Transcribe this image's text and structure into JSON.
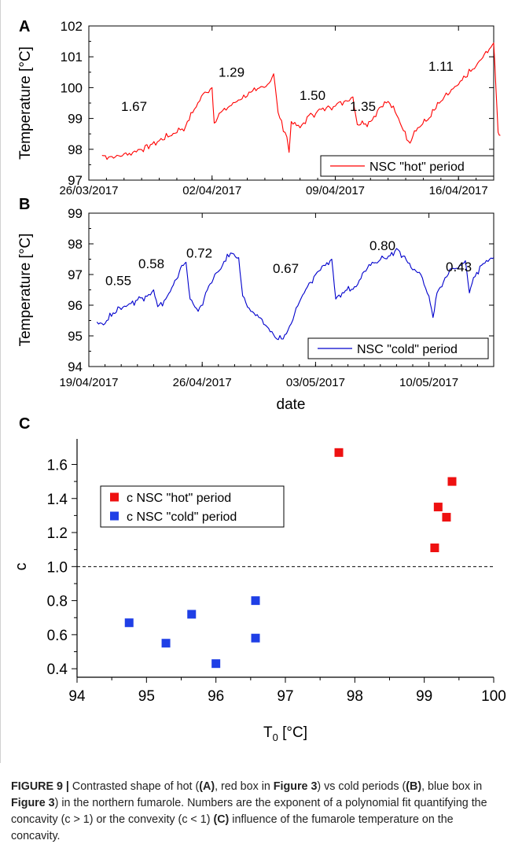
{
  "chart_data": [
    {
      "panel": "A",
      "type": "line",
      "ylabel": "Temperature [°C]",
      "xlabel": "",
      "x_ticks": [
        "26/03/2017",
        "02/04/2017",
        "09/04/2017",
        "16/04/2017"
      ],
      "y_ticks": [
        "97",
        "98",
        "99",
        "100",
        "101",
        "102"
      ],
      "xlim": [
        "2017-03-26",
        "2017-04-18"
      ],
      "ylim": [
        97,
        102
      ],
      "grid": false,
      "legend_position": "bottom-right",
      "series": [
        {
          "name": "NSC \"hot\" period",
          "color": "#ff0000",
          "points": [
            [
              "2017-03-26T18:00",
              97.8
            ],
            [
              "2017-03-27T12:00",
              97.75
            ],
            [
              "2017-03-28T12:00",
              97.9
            ],
            [
              "2017-03-29T12:00",
              98.15
            ],
            [
              "2017-03-30T12:00",
              98.4
            ],
            [
              "2017-03-31T12:00",
              98.75
            ],
            [
              "2017-04-01T00:00",
              99.3
            ],
            [
              "2017-04-01T12:00",
              99.8
            ],
            [
              "2017-04-02T00:00",
              100.0
            ],
            [
              "2017-04-02T03:00",
              98.85
            ],
            [
              "2017-04-02T12:00",
              99.2
            ],
            [
              "2017-04-03T12:00",
              99.6
            ],
            [
              "2017-04-04T12:00",
              99.9
            ],
            [
              "2017-04-05T06:00",
              100.15
            ],
            [
              "2017-04-05T12:00",
              100.45
            ],
            [
              "2017-04-05T18:00",
              99.2
            ],
            [
              "2017-04-06T06:00",
              98.4
            ],
            [
              "2017-04-06T09:00",
              97.9
            ],
            [
              "2017-04-06T12:00",
              98.9
            ],
            [
              "2017-04-07T00:00",
              98.7
            ],
            [
              "2017-04-07T12:00",
              99.1
            ],
            [
              "2017-04-08T12:00",
              99.35
            ],
            [
              "2017-04-09T12:00",
              99.55
            ],
            [
              "2017-04-10T00:00",
              99.7
            ],
            [
              "2017-04-10T06:00",
              98.8
            ],
            [
              "2017-04-11T00:00",
              98.9
            ],
            [
              "2017-04-11T12:00",
              99.35
            ],
            [
              "2017-04-12T00:00",
              99.55
            ],
            [
              "2017-04-12T12:00",
              99.1
            ],
            [
              "2017-04-13T06:00",
              98.2
            ],
            [
              "2017-04-13T12:00",
              98.6
            ],
            [
              "2017-04-14T06:00",
              98.95
            ],
            [
              "2017-04-15T00:00",
              99.55
            ],
            [
              "2017-04-16T00:00",
              100.1
            ],
            [
              "2017-04-17T00:00",
              100.7
            ],
            [
              "2017-04-17T18:00",
              101.25
            ],
            [
              "2017-04-18T00:00",
              101.45
            ],
            [
              "2017-04-18T03:00",
              100.0
            ],
            [
              "2017-04-18T06:00",
              98.55
            ],
            [
              "2017-04-18T09:00",
              98.45
            ]
          ]
        }
      ],
      "annotations": [
        "1.67",
        "1.29",
        "1.50",
        "1.35",
        "1.11"
      ]
    },
    {
      "panel": "B",
      "type": "line",
      "ylabel": "Temperature [°C]",
      "xlabel": "date",
      "x_ticks": [
        "19/04/2017",
        "26/04/2017",
        "03/05/2017",
        "10/05/2017"
      ],
      "y_ticks": [
        "94",
        "95",
        "96",
        "97",
        "98",
        "99"
      ],
      "xlim": [
        "2017-04-19",
        "2017-05-14"
      ],
      "ylim": [
        94,
        99
      ],
      "grid": false,
      "legend_position": "bottom-right",
      "series": [
        {
          "name": "NSC \"cold\" period",
          "color": "#0000cc",
          "points": [
            [
              "2017-04-19T12:00",
              95.45
            ],
            [
              "2017-04-20T00:00",
              95.4
            ],
            [
              "2017-04-20T12:00",
              95.75
            ],
            [
              "2017-04-21T12:00",
              96.05
            ],
            [
              "2017-04-22T12:00",
              96.3
            ],
            [
              "2017-04-23T00:00",
              96.5
            ],
            [
              "2017-04-23T06:00",
              95.95
            ],
            [
              "2017-04-23T18:00",
              96.2
            ],
            [
              "2017-04-24T12:00",
              96.9
            ],
            [
              "2017-04-24T18:00",
              97.3
            ],
            [
              "2017-04-25T00:00",
              97.4
            ],
            [
              "2017-04-25T06:00",
              96.2
            ],
            [
              "2017-04-25T18:00",
              95.8
            ],
            [
              "2017-04-26T12:00",
              96.7
            ],
            [
              "2017-04-27T06:00",
              97.3
            ],
            [
              "2017-04-27T18:00",
              97.7
            ],
            [
              "2017-04-28T06:00",
              97.55
            ],
            [
              "2017-04-28T12:00",
              96.3
            ],
            [
              "2017-04-29T00:00",
              95.8
            ],
            [
              "2017-04-29T12:00",
              95.6
            ],
            [
              "2017-04-30T00:00",
              95.3
            ],
            [
              "2017-04-30T12:00",
              94.95
            ],
            [
              "2017-05-01T00:00",
              94.9
            ],
            [
              "2017-05-01T12:00",
              95.4
            ],
            [
              "2017-05-02T00:00",
              96.1
            ],
            [
              "2017-05-02T12:00",
              96.6
            ],
            [
              "2017-05-03T00:00",
              97.0
            ],
            [
              "2017-05-03T12:00",
              97.3
            ],
            [
              "2017-05-04T00:00",
              97.5
            ],
            [
              "2017-05-04T06:00",
              96.2
            ],
            [
              "2017-05-04T18:00",
              96.4
            ],
            [
              "2017-05-05T12:00",
              96.6
            ],
            [
              "2017-05-06T00:00",
              97.1
            ],
            [
              "2017-05-06T12:00",
              97.4
            ],
            [
              "2017-05-07T12:00",
              97.6
            ],
            [
              "2017-05-08T00:00",
              97.85
            ],
            [
              "2017-05-08T12:00",
              97.6
            ],
            [
              "2017-05-09T00:00",
              97.15
            ],
            [
              "2017-05-09T12:00",
              97.0
            ],
            [
              "2017-05-10T00:00",
              96.3
            ],
            [
              "2017-05-10T06:00",
              95.6
            ],
            [
              "2017-05-10T12:00",
              96.4
            ],
            [
              "2017-05-11T00:00",
              96.9
            ],
            [
              "2017-05-11T12:00",
              97.2
            ],
            [
              "2017-05-12T00:00",
              97.3
            ],
            [
              "2017-05-12T06:00",
              97.45
            ],
            [
              "2017-05-12T12:00",
              96.4
            ],
            [
              "2017-05-12T18:00",
              96.9
            ],
            [
              "2017-05-13T06:00",
              97.3
            ],
            [
              "2017-05-13T18:00",
              97.5
            ],
            [
              "2017-05-14T00:00",
              97.55
            ]
          ]
        }
      ],
      "annotations": [
        "0.55",
        "0.58",
        "0.72",
        "0.67",
        "0.80",
        "0.43"
      ]
    },
    {
      "panel": "C",
      "type": "scatter",
      "xlabel": "T",
      "xlabel_sub": "0",
      "xlabel_unit": " [°C]",
      "ylabel": "c",
      "xlim": [
        94,
        100
      ],
      "ylim": [
        0.35,
        1.75
      ],
      "x_ticks": [
        "94",
        "95",
        "96",
        "97",
        "98",
        "99",
        "100"
      ],
      "y_ticks": [
        "0.4",
        "0.6",
        "0.8",
        "1.0",
        "1.2",
        "1.4",
        "1.6"
      ],
      "grid": false,
      "legend_position": "top-left",
      "reference_line": {
        "y": 1.0,
        "style": "dashed"
      },
      "series": [
        {
          "name": "c NSC \"hot\" period",
          "color": "#ee1111",
          "points": [
            [
              97.77,
              1.67
            ],
            [
              99.4,
              1.5
            ],
            [
              99.2,
              1.35
            ],
            [
              99.32,
              1.29
            ],
            [
              99.15,
              1.11
            ]
          ]
        },
        {
          "name": "c NSC \"cold\" period",
          "color": "#1f3fe6",
          "points": [
            [
              94.75,
              0.67
            ],
            [
              95.28,
              0.55
            ],
            [
              95.65,
              0.72
            ],
            [
              96.0,
              0.43
            ],
            [
              96.57,
              0.8
            ],
            [
              96.57,
              0.58
            ]
          ]
        }
      ]
    }
  ],
  "panel_labels": [
    "A",
    "B",
    "C"
  ],
  "caption": {
    "figure_label": "FIGURE 9 |",
    "runs": [
      {
        "text": " Contrasted shape of hot (",
        "bold": false
      },
      {
        "text": "(A)",
        "bold": true
      },
      {
        "text": ", red box in ",
        "bold": false
      },
      {
        "text": "Figure 3",
        "bold": true
      },
      {
        "text": ") vs cold periods (",
        "bold": false
      },
      {
        "text": "(B)",
        "bold": true
      },
      {
        "text": ", blue box in ",
        "bold": false
      },
      {
        "text": "Figure 3",
        "bold": true
      },
      {
        "text": ") in the northern fumarole. Numbers are the exponent of a polynomial fit quantifying the concavity (c > 1) or the convexity (c < 1) ",
        "bold": false
      },
      {
        "text": "(C)",
        "bold": true
      },
      {
        "text": " influence of the fumarole temperature on the concavity.",
        "bold": false
      }
    ]
  }
}
